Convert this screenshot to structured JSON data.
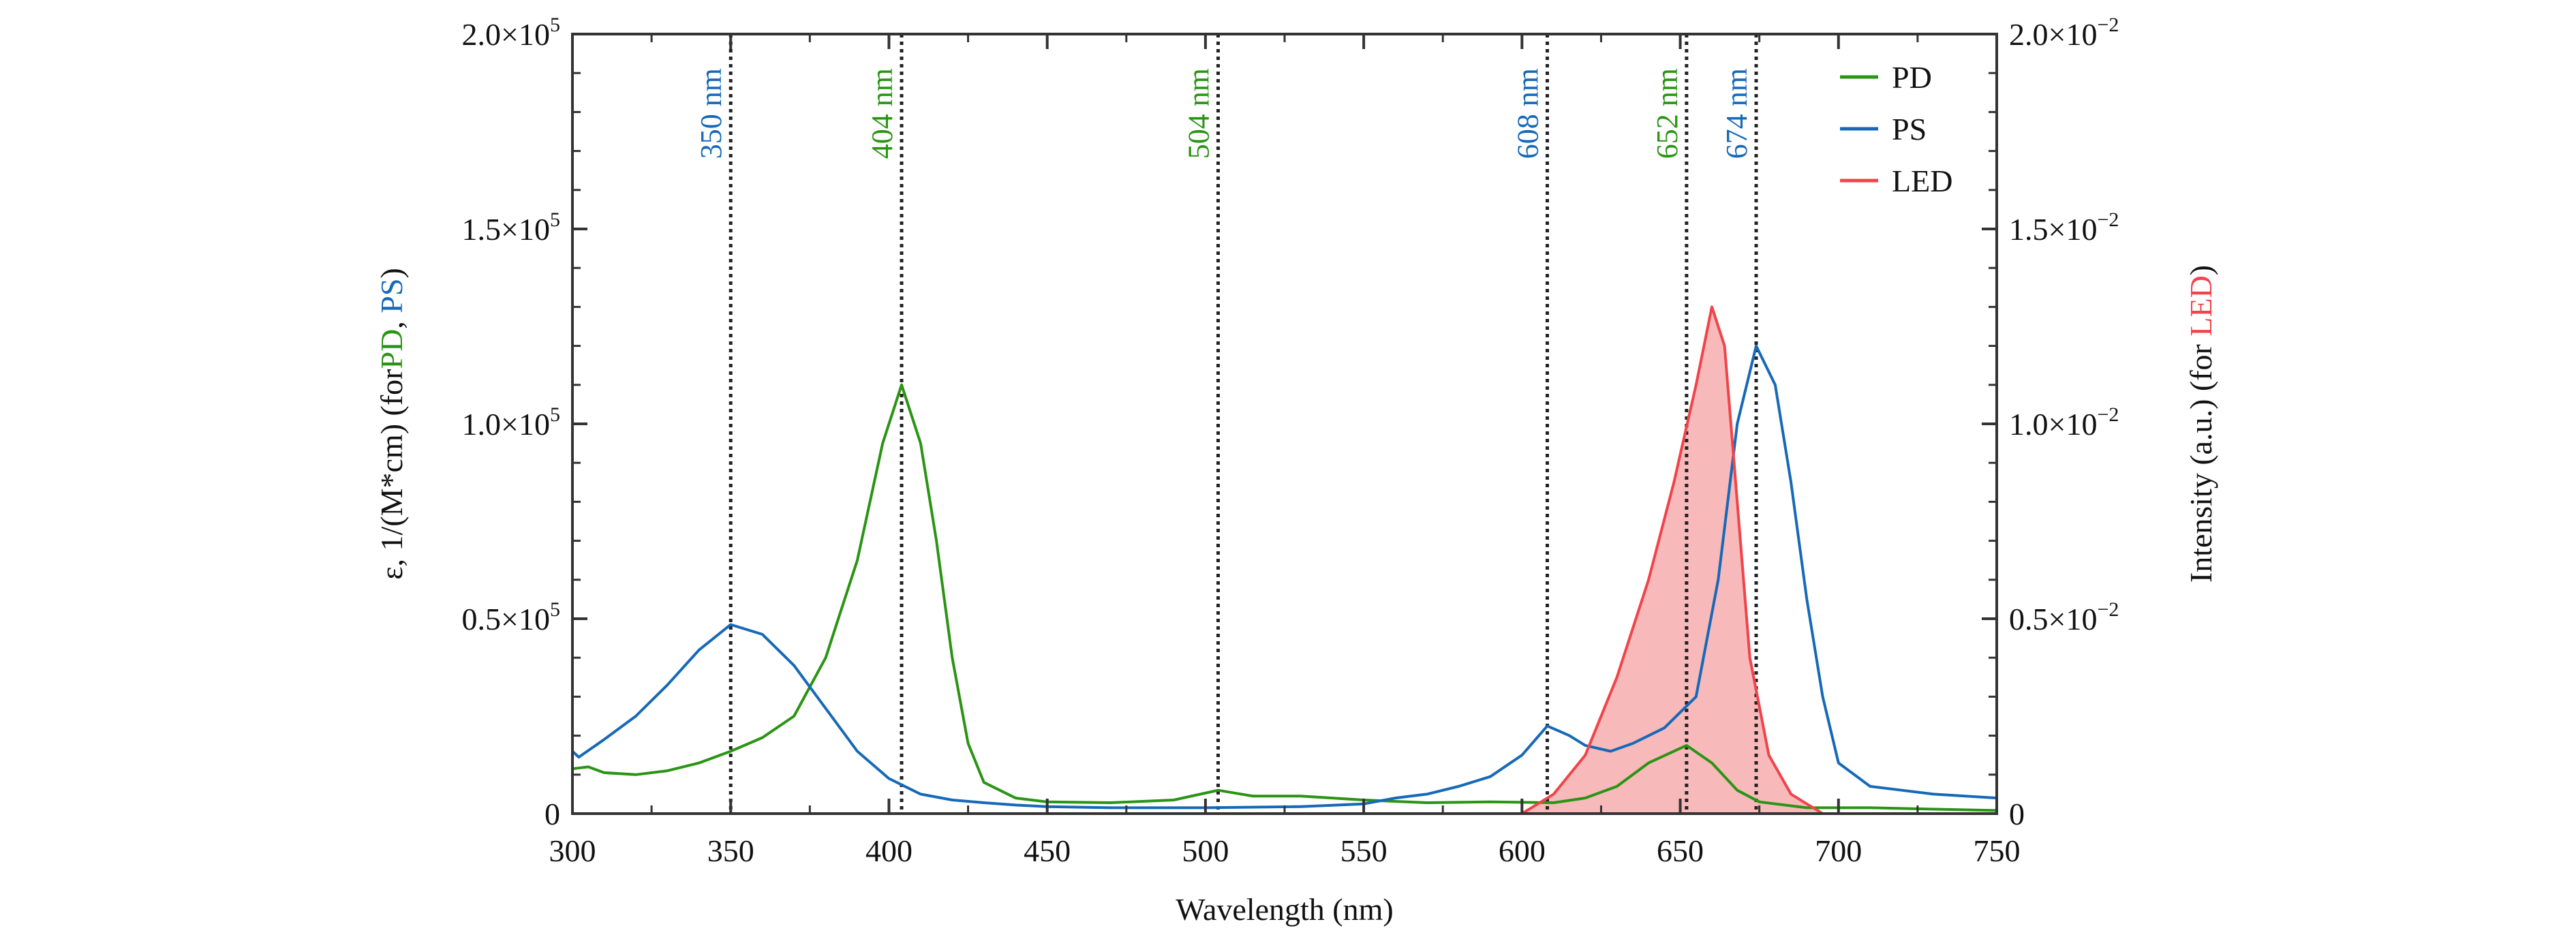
{
  "chart_data": {
    "type": "line",
    "xlabel": "Wavelength (nm)",
    "ylabel_left": {
      "prefix": "ε, 1/(M*cm) (for",
      "pd": "PD",
      "sep": ", ",
      "ps": "PS",
      "suffix": ")"
    },
    "ylabel_right": {
      "prefix": "Intensity (a.u.) (for ",
      "led": "LED",
      "suffix": ")"
    },
    "xlim": [
      300,
      750
    ],
    "ylim_left": [
      0,
      200000
    ],
    "ylim_right": [
      0,
      0.02
    ],
    "grid": false,
    "legend_position": "top-right",
    "x_ticks": [
      {
        "v": 300,
        "label": "300"
      },
      {
        "v": 350,
        "label": "350"
      },
      {
        "v": 400,
        "label": "400"
      },
      {
        "v": 450,
        "label": "450"
      },
      {
        "v": 500,
        "label": "500"
      },
      {
        "v": 550,
        "label": "550"
      },
      {
        "v": 600,
        "label": "600"
      },
      {
        "v": 650,
        "label": "650"
      },
      {
        "v": 700,
        "label": "700"
      },
      {
        "v": 750,
        "label": "750"
      }
    ],
    "y_ticks_left": [
      {
        "v": 0,
        "base": "0",
        "sup": ""
      },
      {
        "v": 50000,
        "base": "0.5×10",
        "sup": "5"
      },
      {
        "v": 100000,
        "base": "1.0×10",
        "sup": "5"
      },
      {
        "v": 150000,
        "base": "1.5×10",
        "sup": "5"
      },
      {
        "v": 200000,
        "base": "2.0×10",
        "sup": "5"
      }
    ],
    "y_ticks_right": [
      {
        "v": 0,
        "base": "0",
        "sup": ""
      },
      {
        "v": 0.005,
        "base": "0.5×10",
        "sup": "−2"
      },
      {
        "v": 0.01,
        "base": "1.0×10",
        "sup": "−2"
      },
      {
        "v": 0.015,
        "base": "1.5×10",
        "sup": "−2"
      },
      {
        "v": 0.02,
        "base": "2.0×10",
        "sup": "−2"
      }
    ],
    "colors": {
      "PD": "#2a9414",
      "PS": "#1669b8",
      "LED": "#f0444a",
      "LED_fill": "#f7b9ba",
      "marker": "#222222"
    },
    "markers": [
      {
        "x": 350,
        "label": "350 nm",
        "color": "PS"
      },
      {
        "x": 404,
        "label": "404 nm",
        "color": "PD"
      },
      {
        "x": 504,
        "label": "504 nm",
        "color": "PD"
      },
      {
        "x": 608,
        "label": "608 nm",
        "color": "PS"
      },
      {
        "x": 652,
        "label": "652 nm",
        "color": "PD"
      },
      {
        "x": 674,
        "label": "674 nm",
        "color": "PS"
      }
    ],
    "series": [
      {
        "name": "PD",
        "axis": "left",
        "x": [
          300,
          305,
          310,
          320,
          330,
          340,
          350,
          360,
          370,
          380,
          390,
          398,
          404,
          410,
          415,
          420,
          425,
          430,
          440,
          450,
          470,
          490,
          504,
          515,
          530,
          550,
          570,
          590,
          610,
          620,
          630,
          640,
          652,
          660,
          668,
          675,
          690,
          710,
          750
        ],
        "y": [
          11500,
          12000,
          10500,
          10000,
          11000,
          13000,
          16000,
          19500,
          25000,
          40000,
          65000,
          95000,
          110000,
          95000,
          70000,
          40000,
          18000,
          8000,
          4000,
          3000,
          2800,
          3500,
          6000,
          4500,
          4500,
          3500,
          2800,
          3000,
          2800,
          4000,
          7000,
          13000,
          17500,
          13000,
          6000,
          3000,
          1500,
          1500,
          800
        ]
      },
      {
        "name": "PS",
        "axis": "left",
        "x": [
          300,
          302,
          310,
          320,
          330,
          340,
          350,
          360,
          370,
          380,
          390,
          400,
          410,
          420,
          430,
          440,
          450,
          470,
          500,
          530,
          550,
          560,
          570,
          580,
          590,
          600,
          608,
          615,
          620,
          628,
          635,
          645,
          655,
          662,
          668,
          674,
          680,
          685,
          690,
          695,
          700,
          710,
          720,
          730,
          750
        ],
        "y": [
          16000,
          14500,
          19000,
          25000,
          33000,
          42000,
          48500,
          46000,
          38000,
          27000,
          16000,
          9000,
          5000,
          3500,
          2800,
          2200,
          1800,
          1500,
          1500,
          1800,
          2500,
          4000,
          5000,
          7000,
          9500,
          15000,
          22500,
          20000,
          17500,
          16000,
          18000,
          22000,
          30000,
          60000,
          100000,
          120000,
          110000,
          85000,
          55000,
          30000,
          13000,
          7000,
          6000,
          5000,
          4000
        ]
      },
      {
        "name": "LED",
        "axis": "right",
        "x": [
          300,
          600,
          610,
          620,
          630,
          640,
          648,
          655,
          660,
          664,
          668,
          672,
          678,
          685,
          695,
          750
        ],
        "y": [
          0,
          0,
          0.0005,
          0.0015,
          0.0035,
          0.006,
          0.0085,
          0.011,
          0.013,
          0.012,
          0.008,
          0.004,
          0.0015,
          0.0005,
          0,
          0
        ]
      }
    ]
  }
}
